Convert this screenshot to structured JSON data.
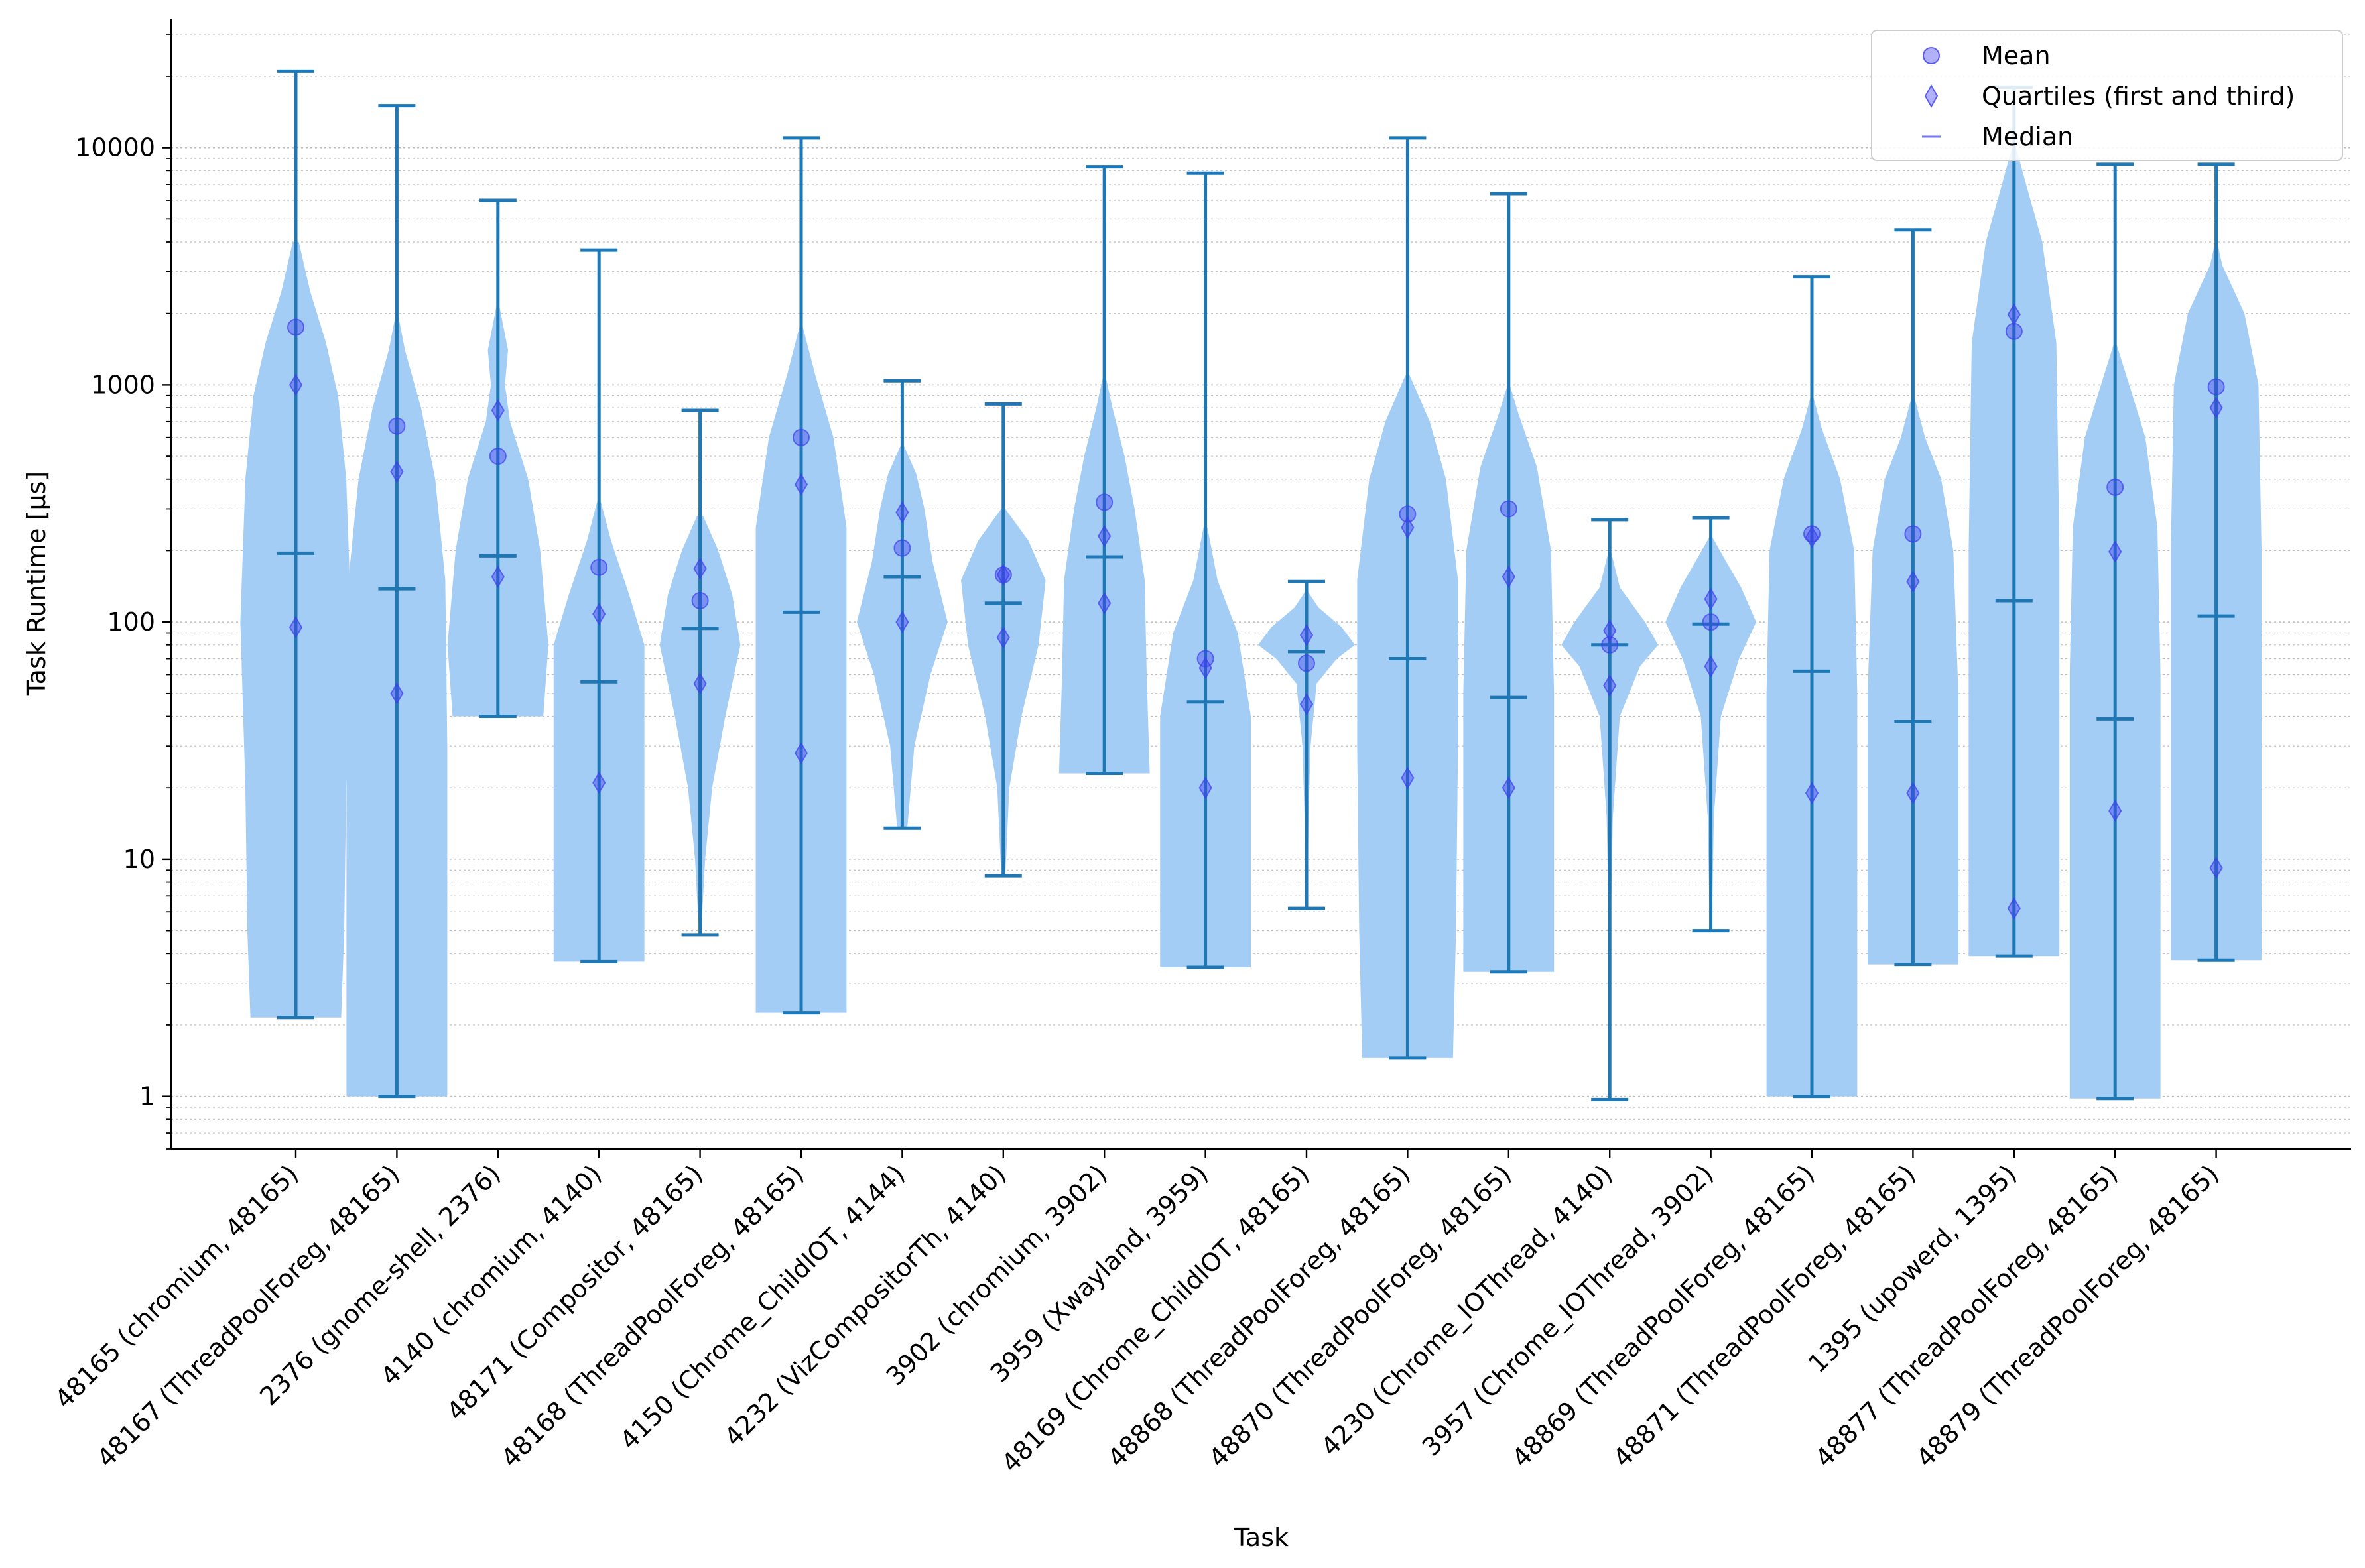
{
  "chart_data": {
    "type": "violin",
    "title": "",
    "xlabel": "Task",
    "ylabel": "Task Runtime [µs]",
    "yscale": "log",
    "ylim": [
      0.6,
      35000
    ],
    "yticks": [
      1,
      10,
      100,
      1000,
      10000
    ],
    "ytick_labels": [
      "1",
      "10",
      "100",
      "1000",
      "10000"
    ],
    "grid": "horizontal major and minor, dotted",
    "legend_position": "top-right",
    "legend": [
      {
        "key": "mean",
        "label": "Mean"
      },
      {
        "key": "quartiles",
        "label": "Quartiles (first and third)"
      },
      {
        "key": "median",
        "label": "Median"
      }
    ],
    "colors": {
      "violin_fill": "#a4cdf5",
      "whisker": "#1f77b4",
      "marker": "#3d3df0",
      "grid": "#bdbdbd"
    },
    "tasks": [
      {
        "label": "48165 (chromium, 48165)",
        "min": 2.15,
        "max": 21000,
        "median": 195,
        "mean": 1750,
        "q1": 95,
        "q3": 1000,
        "shape": [
          [
            2.15,
            0.45
          ],
          [
            5,
            0.48
          ],
          [
            20,
            0.5
          ],
          [
            100,
            0.55
          ],
          [
            400,
            0.5
          ],
          [
            900,
            0.42
          ],
          [
            1500,
            0.3
          ],
          [
            2500,
            0.14
          ],
          [
            4000,
            0.03
          ]
        ]
      },
      {
        "label": "48167 (ThreadPoolForeg, 48165)",
        "min": 1.0,
        "max": 15000,
        "median": 138,
        "mean": 670,
        "q1": 50,
        "q3": 430,
        "shape": [
          [
            1.0,
            0.5
          ],
          [
            5,
            0.5
          ],
          [
            30,
            0.5
          ],
          [
            150,
            0.48
          ],
          [
            400,
            0.38
          ],
          [
            800,
            0.24
          ],
          [
            1400,
            0.08
          ],
          [
            2000,
            0.01
          ]
        ]
      },
      {
        "label": "2376 (gnome-shell, 2376)",
        "min": 40,
        "max": 6000,
        "median": 190,
        "mean": 500,
        "q1": 155,
        "q3": 780,
        "shape": [
          [
            40,
            0.45
          ],
          [
            80,
            0.5
          ],
          [
            200,
            0.42
          ],
          [
            400,
            0.3
          ],
          [
            700,
            0.12
          ],
          [
            1000,
            0.07
          ],
          [
            1400,
            0.1
          ],
          [
            1800,
            0.05
          ],
          [
            2200,
            0.01
          ]
        ]
      },
      {
        "label": "4140 (chromium, 4140)",
        "min": 3.7,
        "max": 3700,
        "median": 56,
        "mean": 170,
        "q1": 21,
        "q3": 108,
        "shape": [
          [
            3.7,
            0.45
          ],
          [
            10,
            0.45
          ],
          [
            40,
            0.45
          ],
          [
            80,
            0.45
          ],
          [
            130,
            0.3
          ],
          [
            220,
            0.12
          ],
          [
            320,
            0.02
          ]
        ]
      },
      {
        "label": "48171 (Compositor, 48165)",
        "min": 4.8,
        "max": 780,
        "median": 94,
        "mean": 123,
        "q1": 55,
        "q3": 168,
        "shape": [
          [
            4.8,
            0.01
          ],
          [
            10,
            0.05
          ],
          [
            20,
            0.12
          ],
          [
            40,
            0.25
          ],
          [
            80,
            0.4
          ],
          [
            130,
            0.32
          ],
          [
            200,
            0.18
          ],
          [
            280,
            0.03
          ]
        ]
      },
      {
        "label": "48168 (ThreadPoolForeg, 48165)",
        "min": 2.25,
        "max": 11000,
        "median": 110,
        "mean": 600,
        "q1": 28,
        "q3": 380,
        "shape": [
          [
            2.25,
            0.45
          ],
          [
            10,
            0.45
          ],
          [
            60,
            0.45
          ],
          [
            250,
            0.45
          ],
          [
            600,
            0.32
          ],
          [
            1100,
            0.14
          ],
          [
            1800,
            0.01
          ]
        ]
      },
      {
        "label": "4150 (Chrome_ChildIOT, 4144)",
        "min": 13.5,
        "max": 1040,
        "median": 155,
        "mean": 205,
        "q1": 100,
        "q3": 290,
        "shape": [
          [
            13.5,
            0.05
          ],
          [
            30,
            0.12
          ],
          [
            60,
            0.28
          ],
          [
            100,
            0.45
          ],
          [
            180,
            0.3
          ],
          [
            300,
            0.22
          ],
          [
            420,
            0.14
          ],
          [
            550,
            0.02
          ]
        ]
      },
      {
        "label": "4232 (VizCompositorTh, 4140)",
        "min": 8.5,
        "max": 830,
        "median": 120,
        "mean": 158,
        "q1": 86,
        "q3": 158,
        "shape": [
          [
            8.5,
            0.02
          ],
          [
            20,
            0.06
          ],
          [
            40,
            0.18
          ],
          [
            80,
            0.35
          ],
          [
            150,
            0.42
          ],
          [
            220,
            0.25
          ],
          [
            300,
            0.02
          ]
        ]
      },
      {
        "label": "3902 (chromium, 3902)",
        "min": 23,
        "max": 8300,
        "median": 188,
        "mean": 320,
        "q1": 120,
        "q3": 230,
        "shape": [
          [
            23,
            0.45
          ],
          [
            60,
            0.42
          ],
          [
            150,
            0.4
          ],
          [
            300,
            0.3
          ],
          [
            500,
            0.2
          ],
          [
            800,
            0.08
          ],
          [
            1100,
            0.01
          ]
        ]
      },
      {
        "label": "3959 (Xwayland, 3959)",
        "min": 3.5,
        "max": 7800,
        "median": 46,
        "mean": 70,
        "q1": 20,
        "q3": 64,
        "shape": [
          [
            3.5,
            0.45
          ],
          [
            10,
            0.45
          ],
          [
            40,
            0.45
          ],
          [
            90,
            0.32
          ],
          [
            150,
            0.12
          ],
          [
            250,
            0.02
          ]
        ]
      },
      {
        "label": "48169 (Chrome_ChildIOT, 48165)",
        "min": 6.2,
        "max": 148,
        "median": 75,
        "mean": 67,
        "q1": 45,
        "q3": 88,
        "shape": [
          [
            6.2,
            0.01
          ],
          [
            15,
            0.02
          ],
          [
            30,
            0.04
          ],
          [
            55,
            0.1
          ],
          [
            70,
            0.3
          ],
          [
            80,
            0.48
          ],
          [
            95,
            0.35
          ],
          [
            115,
            0.12
          ],
          [
            135,
            0.01
          ]
        ]
      },
      {
        "label": "48868 (ThreadPoolForeg, 48165)",
        "min": 1.45,
        "max": 11000,
        "median": 70,
        "mean": 285,
        "q1": 22,
        "q3": 250,
        "shape": [
          [
            1.45,
            0.45
          ],
          [
            5,
            0.48
          ],
          [
            30,
            0.5
          ],
          [
            150,
            0.5
          ],
          [
            400,
            0.38
          ],
          [
            700,
            0.22
          ],
          [
            1100,
            0.02
          ]
        ]
      },
      {
        "label": "48870 (ThreadPoolForeg, 48165)",
        "min": 3.35,
        "max": 6400,
        "median": 48,
        "mean": 300,
        "q1": 20,
        "q3": 155,
        "shape": [
          [
            3.35,
            0.45
          ],
          [
            10,
            0.45
          ],
          [
            50,
            0.45
          ],
          [
            200,
            0.42
          ],
          [
            450,
            0.28
          ],
          [
            750,
            0.1
          ],
          [
            1000,
            0.01
          ]
        ]
      },
      {
        "label": "4230 (Chrome_IOThread, 4140)",
        "min": 0.97,
        "max": 270,
        "median": 80,
        "mean": 80,
        "q1": 54,
        "q3": 92,
        "shape": [
          [
            0.97,
            0.0
          ],
          [
            5,
            0.01
          ],
          [
            15,
            0.03
          ],
          [
            40,
            0.1
          ],
          [
            65,
            0.3
          ],
          [
            80,
            0.48
          ],
          [
            100,
            0.35
          ],
          [
            140,
            0.1
          ],
          [
            200,
            0.01
          ]
        ]
      },
      {
        "label": "3957 (Chrome_IOThread, 3902)",
        "min": 5.0,
        "max": 275,
        "median": 98,
        "mean": 100,
        "q1": 65,
        "q3": 125,
        "shape": [
          [
            5.0,
            0.01
          ],
          [
            15,
            0.03
          ],
          [
            40,
            0.1
          ],
          [
            70,
            0.28
          ],
          [
            100,
            0.45
          ],
          [
            140,
            0.3
          ],
          [
            190,
            0.12
          ],
          [
            230,
            0.01
          ]
        ]
      },
      {
        "label": "48869 (ThreadPoolForeg, 48165)",
        "min": 1.0,
        "max": 2850,
        "median": 62,
        "mean": 235,
        "q1": 19,
        "q3": 228,
        "shape": [
          [
            1.0,
            0.45
          ],
          [
            10,
            0.45
          ],
          [
            50,
            0.45
          ],
          [
            200,
            0.42
          ],
          [
            400,
            0.28
          ],
          [
            650,
            0.1
          ],
          [
            900,
            0.01
          ]
        ]
      },
      {
        "label": "48871 (ThreadPoolForeg, 48165)",
        "min": 3.6,
        "max": 4500,
        "median": 38,
        "mean": 235,
        "q1": 19,
        "q3": 148,
        "shape": [
          [
            3.6,
            0.45
          ],
          [
            10,
            0.45
          ],
          [
            50,
            0.45
          ],
          [
            200,
            0.4
          ],
          [
            400,
            0.28
          ],
          [
            600,
            0.12
          ],
          [
            900,
            0.01
          ]
        ]
      },
      {
        "label": "1395 (upowerd, 1395)",
        "min": 3.9,
        "max": 18000,
        "median": 123,
        "mean": 1680,
        "q1": 6.2,
        "q3": 1980,
        "shape": [
          [
            3.9,
            0.45
          ],
          [
            20,
            0.45
          ],
          [
            200,
            0.45
          ],
          [
            1500,
            0.42
          ],
          [
            4000,
            0.28
          ],
          [
            7000,
            0.12
          ],
          [
            10000,
            0.02
          ]
        ]
      },
      {
        "label": "48877 (ThreadPoolForeg, 48165)",
        "min": 0.98,
        "max": 8500,
        "median": 39,
        "mean": 370,
        "q1": 16,
        "q3": 198,
        "shape": [
          [
            0.98,
            0.45
          ],
          [
            10,
            0.45
          ],
          [
            60,
            0.45
          ],
          [
            250,
            0.42
          ],
          [
            600,
            0.3
          ],
          [
            1000,
            0.14
          ],
          [
            1500,
            0.01
          ]
        ]
      },
      {
        "label": "48879 (ThreadPoolForeg, 48165)",
        "min": 3.75,
        "max": 8500,
        "median": 106,
        "mean": 980,
        "q1": 9.2,
        "q3": 800,
        "shape": [
          [
            3.75,
            0.45
          ],
          [
            20,
            0.45
          ],
          [
            200,
            0.45
          ],
          [
            1000,
            0.42
          ],
          [
            2000,
            0.28
          ],
          [
            3200,
            0.06
          ],
          [
            4000,
            0.01
          ]
        ]
      }
    ]
  }
}
